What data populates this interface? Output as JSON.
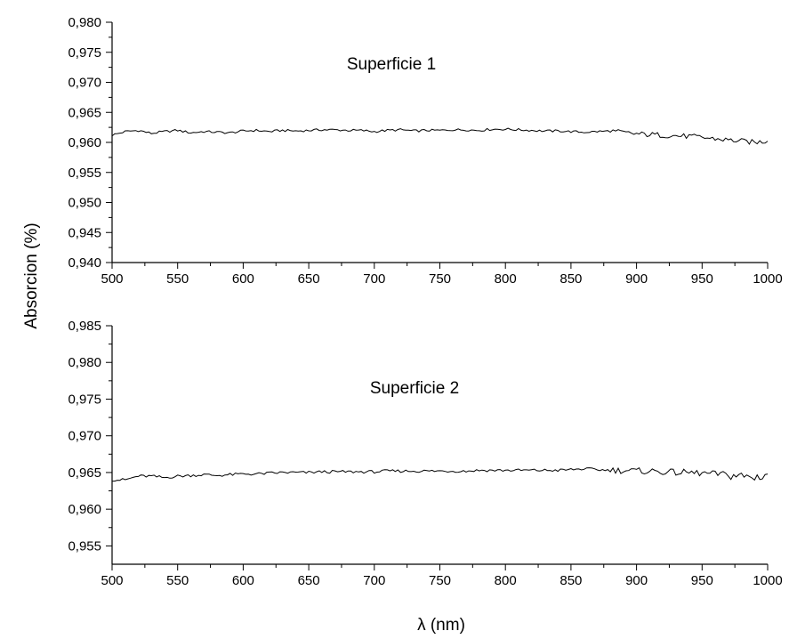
{
  "chart_data": {
    "type": "line",
    "shared_ylabel": "Absorcion (%)",
    "shared_xlabel": "λ (nm)",
    "panels": [
      {
        "annotation": "Superficie 1",
        "xlim": [
          500,
          1000
        ],
        "ylim": [
          0.94,
          0.98
        ],
        "xticks": [
          500,
          550,
          600,
          650,
          700,
          750,
          800,
          850,
          900,
          950,
          1000
        ],
        "xtick_labels": [
          "500",
          "550",
          "600",
          "650",
          "700",
          "750",
          "800",
          "850",
          "900",
          "950",
          "1000"
        ],
        "yticks": [
          0.94,
          0.945,
          0.95,
          0.955,
          0.96,
          0.965,
          0.97,
          0.975,
          0.98
        ],
        "ytick_labels": [
          "0,940",
          "0,945",
          "0,950",
          "0,955",
          "0,960",
          "0,965",
          "0,970",
          "0,975",
          "0,980"
        ],
        "series": [
          {
            "x": [
              500,
              510,
              520,
              530,
              540,
              550,
              560,
              570,
              580,
              590,
              600,
              610,
              620,
              630,
              640,
              650,
              660,
              670,
              680,
              690,
              700,
              710,
              720,
              730,
              740,
              750,
              760,
              770,
              780,
              790,
              800,
              810,
              820,
              830,
              840,
              850,
              860,
              870,
              880,
              890,
              900,
              910,
              920,
              930,
              940,
              950,
              960,
              970,
              980,
              990,
              1000
            ],
            "y": [
              0.9612,
              0.9618,
              0.962,
              0.9615,
              0.9618,
              0.962,
              0.9616,
              0.9618,
              0.9617,
              0.9616,
              0.9619,
              0.962,
              0.9618,
              0.962,
              0.9619,
              0.962,
              0.9621,
              0.9621,
              0.962,
              0.962,
              0.9618,
              0.962,
              0.9621,
              0.9619,
              0.962,
              0.962,
              0.9621,
              0.9621,
              0.962,
              0.9622,
              0.9622,
              0.9621,
              0.962,
              0.9619,
              0.9619,
              0.9618,
              0.9617,
              0.9618,
              0.9619,
              0.9616,
              0.9614,
              0.9613,
              0.9612,
              0.9611,
              0.961,
              0.9608,
              0.9606,
              0.9604,
              0.9602,
              0.96,
              0.9602
            ]
          }
        ]
      },
      {
        "annotation": "Superficie 2",
        "xlim": [
          500,
          1000
        ],
        "ylim": [
          0.9525,
          0.985
        ],
        "xticks": [
          500,
          550,
          600,
          650,
          700,
          750,
          800,
          850,
          900,
          950,
          1000
        ],
        "xtick_labels": [
          "500",
          "550",
          "600",
          "650",
          "700",
          "750",
          "800",
          "850",
          "900",
          "950",
          "1000"
        ],
        "yticks": [
          0.955,
          0.96,
          0.965,
          0.97,
          0.975,
          0.98,
          0.985
        ],
        "ytick_labels": [
          "0,955",
          "0,960",
          "0,965",
          "0,970",
          "0,975",
          "0,980",
          "0,985"
        ],
        "series": [
          {
            "x": [
              500,
              510,
              520,
              530,
              540,
              550,
              560,
              570,
              580,
              590,
              600,
              610,
              620,
              630,
              640,
              650,
              660,
              670,
              680,
              690,
              700,
              710,
              720,
              730,
              740,
              750,
              760,
              770,
              780,
              790,
              800,
              810,
              820,
              830,
              840,
              850,
              860,
              870,
              880,
              890,
              900,
              910,
              920,
              930,
              940,
              950,
              960,
              970,
              980,
              990,
              1000
            ],
            "y": [
              0.964,
              0.964,
              0.9645,
              0.9645,
              0.9643,
              0.9645,
              0.9646,
              0.9647,
              0.9646,
              0.9647,
              0.9648,
              0.9648,
              0.9649,
              0.965,
              0.965,
              0.965,
              0.9651,
              0.9651,
              0.9651,
              0.9651,
              0.9651,
              0.9652,
              0.9652,
              0.9652,
              0.9652,
              0.9652,
              0.9652,
              0.9652,
              0.9653,
              0.9653,
              0.9653,
              0.9653,
              0.9653,
              0.9653,
              0.9653,
              0.9654,
              0.9655,
              0.9654,
              0.9653,
              0.9653,
              0.9652,
              0.9652,
              0.9651,
              0.965,
              0.965,
              0.9649,
              0.9648,
              0.9647,
              0.9645,
              0.9643,
              0.9648
            ]
          }
        ]
      }
    ]
  }
}
